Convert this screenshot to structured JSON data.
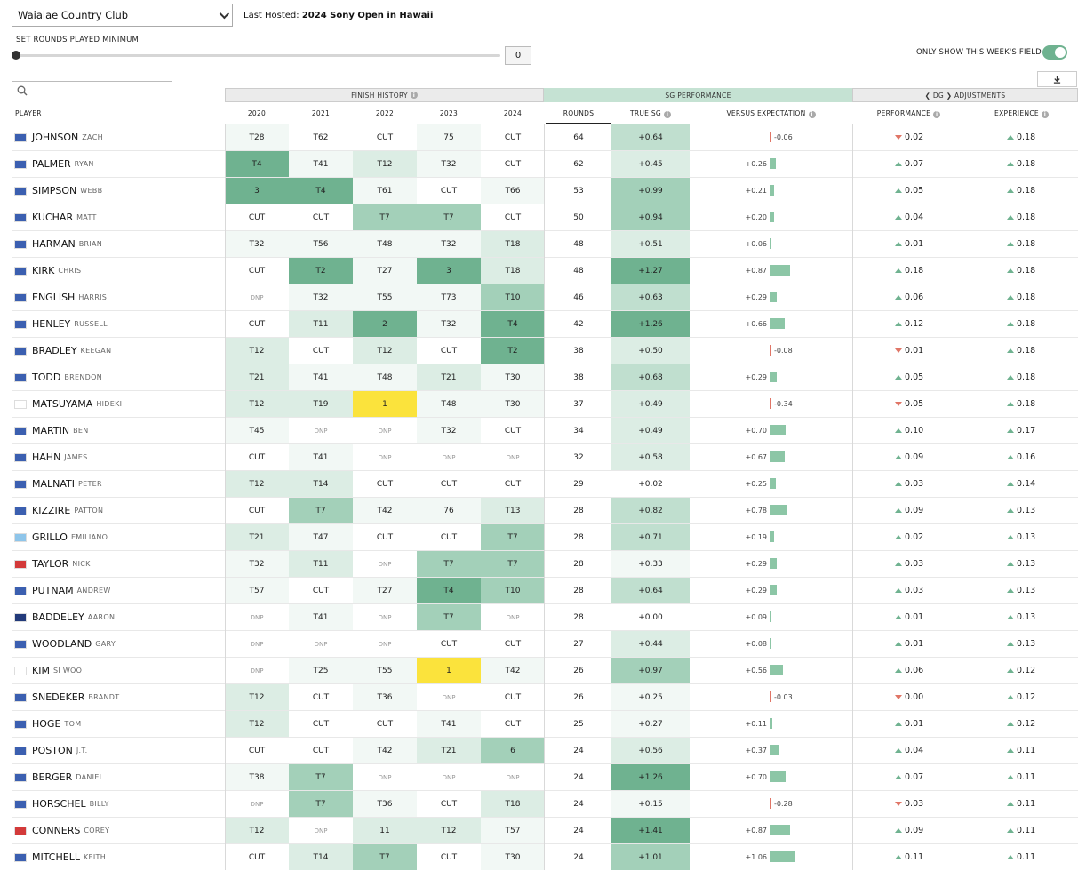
{
  "course": {
    "selected": "Waialae Country Club",
    "last_hosted_label": "Last Hosted:",
    "last_hosted_event": "2024 Sony Open in Hawaii"
  },
  "filters": {
    "rounds_label": "SET ROUNDS PLAYED MINIMUM",
    "rounds_min": "0",
    "rounds_min_fraction": 0,
    "field_label": "ONLY SHOW THIS WEEK'S FIELD",
    "field_toggle_on": true
  },
  "groups": {
    "finish": "FINISH HISTORY",
    "sg": "SG PERFORMANCE",
    "adj": "DG",
    "adj_suffix": "ADJUSTMENTS"
  },
  "columns": {
    "player": "PLAYER",
    "y2020": "2020",
    "y2021": "2021",
    "y2022": "2022",
    "y2023": "2023",
    "y2024": "2024",
    "rounds": "ROUNDS",
    "true_sg": "TRUE SG",
    "vs_exp": "VERSUS EXPECTATION",
    "performance": "PERFORMANCE",
    "experience": "EXPERIENCE"
  },
  "colors": {
    "shade1": "#f2f8f5",
    "shade2": "#dcede4",
    "shade3": "#c0dfcf",
    "shade4": "#a3d0b9",
    "shade5": "#6fb290",
    "winner": "#fbe33c",
    "bar": "#8cc6a6",
    "neg": "#e07566",
    "flag_us": "#3b5fb0",
    "flag_ca": "#d33a3a",
    "flag_jp": "#ffffff",
    "flag_ar": "#8ec5ea",
    "flag_au": "#223a7a",
    "flag_kr": "#ffffff"
  },
  "players": [
    {
      "last": "JOHNSON",
      "first": "ZACH",
      "flag": "us",
      "finishes": [
        "T28",
        "T62",
        "CUT",
        "75",
        "CUT"
      ],
      "shades": [
        1,
        0,
        0,
        1,
        0
      ],
      "rounds": "64",
      "sg": "+0.64",
      "sg_shade": 3,
      "vs": "-0.06",
      "vs_val": -0.06,
      "perf": "0.02",
      "perf_dir": "down",
      "exp": "0.18",
      "exp_dir": "up"
    },
    {
      "last": "PALMER",
      "first": "RYAN",
      "flag": "us",
      "finishes": [
        "T4",
        "T41",
        "T12",
        "T32",
        "CUT"
      ],
      "shades": [
        5,
        1,
        2,
        1,
        0
      ],
      "rounds": "62",
      "sg": "+0.45",
      "sg_shade": 2,
      "vs": "+0.26",
      "vs_val": 0.26,
      "perf": "0.07",
      "perf_dir": "up",
      "exp": "0.18",
      "exp_dir": "up"
    },
    {
      "last": "SIMPSON",
      "first": "WEBB",
      "flag": "us",
      "finishes": [
        "3",
        "T4",
        "T61",
        "CUT",
        "T66"
      ],
      "shades": [
        5,
        5,
        1,
        0,
        1
      ],
      "rounds": "53",
      "sg": "+0.99",
      "sg_shade": 4,
      "vs": "+0.21",
      "vs_val": 0.21,
      "perf": "0.05",
      "perf_dir": "up",
      "exp": "0.18",
      "exp_dir": "up"
    },
    {
      "last": "KUCHAR",
      "first": "MATT",
      "flag": "us",
      "finishes": [
        "CUT",
        "CUT",
        "T7",
        "T7",
        "CUT"
      ],
      "shades": [
        0,
        0,
        4,
        4,
        0
      ],
      "rounds": "50",
      "sg": "+0.94",
      "sg_shade": 4,
      "vs": "+0.20",
      "vs_val": 0.2,
      "perf": "0.04",
      "perf_dir": "up",
      "exp": "0.18",
      "exp_dir": "up"
    },
    {
      "last": "HARMAN",
      "first": "BRIAN",
      "flag": "us",
      "finishes": [
        "T32",
        "T56",
        "T48",
        "T32",
        "T18"
      ],
      "shades": [
        1,
        1,
        1,
        1,
        2
      ],
      "rounds": "48",
      "sg": "+0.51",
      "sg_shade": 2,
      "vs": "+0.06",
      "vs_val": 0.06,
      "perf": "0.01",
      "perf_dir": "up",
      "exp": "0.18",
      "exp_dir": "up"
    },
    {
      "last": "KIRK",
      "first": "CHRIS",
      "flag": "us",
      "finishes": [
        "CUT",
        "T2",
        "T27",
        "3",
        "T18"
      ],
      "shades": [
        0,
        5,
        1,
        5,
        2
      ],
      "rounds": "48",
      "sg": "+1.27",
      "sg_shade": 5,
      "vs": "+0.87",
      "vs_val": 0.87,
      "perf": "0.18",
      "perf_dir": "up",
      "exp": "0.18",
      "exp_dir": "up"
    },
    {
      "last": "ENGLISH",
      "first": "HARRIS",
      "flag": "us",
      "finishes": [
        "DNP",
        "T32",
        "T55",
        "T73",
        "T10"
      ],
      "shades": [
        0,
        1,
        1,
        1,
        4
      ],
      "rounds": "46",
      "sg": "+0.63",
      "sg_shade": 3,
      "vs": "+0.29",
      "vs_val": 0.29,
      "perf": "0.06",
      "perf_dir": "up",
      "exp": "0.18",
      "exp_dir": "up"
    },
    {
      "last": "HENLEY",
      "first": "RUSSELL",
      "flag": "us",
      "finishes": [
        "CUT",
        "T11",
        "2",
        "T32",
        "T4"
      ],
      "shades": [
        0,
        2,
        5,
        1,
        5
      ],
      "rounds": "42",
      "sg": "+1.26",
      "sg_shade": 5,
      "vs": "+0.66",
      "vs_val": 0.66,
      "perf": "0.12",
      "perf_dir": "up",
      "exp": "0.18",
      "exp_dir": "up"
    },
    {
      "last": "BRADLEY",
      "first": "KEEGAN",
      "flag": "us",
      "finishes": [
        "T12",
        "CUT",
        "T12",
        "CUT",
        "T2"
      ],
      "shades": [
        2,
        0,
        2,
        0,
        5
      ],
      "rounds": "38",
      "sg": "+0.50",
      "sg_shade": 2,
      "vs": "-0.08",
      "vs_val": -0.08,
      "perf": "0.01",
      "perf_dir": "down",
      "exp": "0.18",
      "exp_dir": "up"
    },
    {
      "last": "TODD",
      "first": "BRENDON",
      "flag": "us",
      "finishes": [
        "T21",
        "T41",
        "T48",
        "T21",
        "T30"
      ],
      "shades": [
        2,
        1,
        1,
        2,
        1
      ],
      "rounds": "38",
      "sg": "+0.68",
      "sg_shade": 3,
      "vs": "+0.29",
      "vs_val": 0.29,
      "perf": "0.05",
      "perf_dir": "up",
      "exp": "0.18",
      "exp_dir": "up"
    },
    {
      "last": "MATSUYAMA",
      "first": "HIDEKI",
      "flag": "jp",
      "finishes": [
        "T12",
        "T19",
        "1",
        "T48",
        "T30"
      ],
      "shades": [
        2,
        2,
        9,
        1,
        1
      ],
      "rounds": "37",
      "sg": "+0.49",
      "sg_shade": 2,
      "vs": "-0.34",
      "vs_val": -0.34,
      "perf": "0.05",
      "perf_dir": "down",
      "exp": "0.18",
      "exp_dir": "up"
    },
    {
      "last": "MARTIN",
      "first": "BEN",
      "flag": "us",
      "finishes": [
        "T45",
        "DNP",
        "DNP",
        "T32",
        "CUT"
      ],
      "shades": [
        1,
        0,
        0,
        1,
        0
      ],
      "rounds": "34",
      "sg": "+0.49",
      "sg_shade": 2,
      "vs": "+0.70",
      "vs_val": 0.7,
      "perf": "0.10",
      "perf_dir": "up",
      "exp": "0.17",
      "exp_dir": "up"
    },
    {
      "last": "HAHN",
      "first": "JAMES",
      "flag": "us",
      "finishes": [
        "CUT",
        "T41",
        "DNP",
        "DNP",
        "DNP"
      ],
      "shades": [
        0,
        1,
        0,
        0,
        0
      ],
      "rounds": "32",
      "sg": "+0.58",
      "sg_shade": 2,
      "vs": "+0.67",
      "vs_val": 0.67,
      "perf": "0.09",
      "perf_dir": "up",
      "exp": "0.16",
      "exp_dir": "up"
    },
    {
      "last": "MALNATI",
      "first": "PETER",
      "flag": "us",
      "finishes": [
        "T12",
        "T14",
        "CUT",
        "CUT",
        "CUT"
      ],
      "shades": [
        2,
        2,
        0,
        0,
        0
      ],
      "rounds": "29",
      "sg": "+0.02",
      "sg_shade": 0,
      "vs": "+0.25",
      "vs_val": 0.25,
      "perf": "0.03",
      "perf_dir": "up",
      "exp": "0.14",
      "exp_dir": "up"
    },
    {
      "last": "KIZZIRE",
      "first": "PATTON",
      "flag": "us",
      "finishes": [
        "CUT",
        "T7",
        "T42",
        "76",
        "T13"
      ],
      "shades": [
        0,
        4,
        1,
        1,
        2
      ],
      "rounds": "28",
      "sg": "+0.82",
      "sg_shade": 3,
      "vs": "+0.78",
      "vs_val": 0.78,
      "perf": "0.09",
      "perf_dir": "up",
      "exp": "0.13",
      "exp_dir": "up"
    },
    {
      "last": "GRILLO",
      "first": "EMILIANO",
      "flag": "ar",
      "finishes": [
        "T21",
        "T47",
        "CUT",
        "CUT",
        "T7"
      ],
      "shades": [
        2,
        1,
        0,
        0,
        4
      ],
      "rounds": "28",
      "sg": "+0.71",
      "sg_shade": 3,
      "vs": "+0.19",
      "vs_val": 0.19,
      "perf": "0.02",
      "perf_dir": "up",
      "exp": "0.13",
      "exp_dir": "up"
    },
    {
      "last": "TAYLOR",
      "first": "NICK",
      "flag": "ca",
      "finishes": [
        "T32",
        "T11",
        "DNP",
        "T7",
        "T7"
      ],
      "shades": [
        1,
        2,
        0,
        4,
        4
      ],
      "rounds": "28",
      "sg": "+0.33",
      "sg_shade": 1,
      "vs": "+0.29",
      "vs_val": 0.29,
      "perf": "0.03",
      "perf_dir": "up",
      "exp": "0.13",
      "exp_dir": "up"
    },
    {
      "last": "PUTNAM",
      "first": "ANDREW",
      "flag": "us",
      "finishes": [
        "T57",
        "CUT",
        "T27",
        "T4",
        "T10"
      ],
      "shades": [
        1,
        0,
        1,
        5,
        4
      ],
      "rounds": "28",
      "sg": "+0.64",
      "sg_shade": 3,
      "vs": "+0.29",
      "vs_val": 0.29,
      "perf": "0.03",
      "perf_dir": "up",
      "exp": "0.13",
      "exp_dir": "up"
    },
    {
      "last": "BADDELEY",
      "first": "AARON",
      "flag": "au",
      "finishes": [
        "DNP",
        "T41",
        "DNP",
        "T7",
        "DNP"
      ],
      "shades": [
        0,
        1,
        0,
        4,
        0
      ],
      "rounds": "28",
      "sg": "+0.00",
      "sg_shade": 0,
      "vs": "+0.09",
      "vs_val": 0.09,
      "perf": "0.01",
      "perf_dir": "up",
      "exp": "0.13",
      "exp_dir": "up"
    },
    {
      "last": "WOODLAND",
      "first": "GARY",
      "flag": "us",
      "finishes": [
        "DNP",
        "DNP",
        "DNP",
        "CUT",
        "CUT"
      ],
      "shades": [
        0,
        0,
        0,
        0,
        0
      ],
      "rounds": "27",
      "sg": "+0.44",
      "sg_shade": 2,
      "vs": "+0.08",
      "vs_val": 0.08,
      "perf": "0.01",
      "perf_dir": "up",
      "exp": "0.13",
      "exp_dir": "up"
    },
    {
      "last": "KIM",
      "first": "SI WOO",
      "flag": "kr",
      "finishes": [
        "DNP",
        "T25",
        "T55",
        "1",
        "T42"
      ],
      "shades": [
        0,
        1,
        1,
        9,
        1
      ],
      "rounds": "26",
      "sg": "+0.97",
      "sg_shade": 4,
      "vs": "+0.56",
      "vs_val": 0.56,
      "perf": "0.06",
      "perf_dir": "up",
      "exp": "0.12",
      "exp_dir": "up"
    },
    {
      "last": "SNEDEKER",
      "first": "BRANDT",
      "flag": "us",
      "finishes": [
        "T12",
        "CUT",
        "T36",
        "DNP",
        "CUT"
      ],
      "shades": [
        2,
        0,
        1,
        0,
        0
      ],
      "rounds": "26",
      "sg": "+0.25",
      "sg_shade": 1,
      "vs": "-0.03",
      "vs_val": -0.03,
      "perf": "0.00",
      "perf_dir": "down",
      "exp": "0.12",
      "exp_dir": "up"
    },
    {
      "last": "HOGE",
      "first": "TOM",
      "flag": "us",
      "finishes": [
        "T12",
        "CUT",
        "CUT",
        "T41",
        "CUT"
      ],
      "shades": [
        2,
        0,
        0,
        1,
        0
      ],
      "rounds": "25",
      "sg": "+0.27",
      "sg_shade": 1,
      "vs": "+0.11",
      "vs_val": 0.11,
      "perf": "0.01",
      "perf_dir": "up",
      "exp": "0.12",
      "exp_dir": "up"
    },
    {
      "last": "POSTON",
      "first": "J.T.",
      "flag": "us",
      "finishes": [
        "CUT",
        "CUT",
        "T42",
        "T21",
        "6"
      ],
      "shades": [
        0,
        0,
        1,
        2,
        4
      ],
      "rounds": "24",
      "sg": "+0.56",
      "sg_shade": 2,
      "vs": "+0.37",
      "vs_val": 0.37,
      "perf": "0.04",
      "perf_dir": "up",
      "exp": "0.11",
      "exp_dir": "up"
    },
    {
      "last": "BERGER",
      "first": "DANIEL",
      "flag": "us",
      "finishes": [
        "T38",
        "T7",
        "DNP",
        "DNP",
        "DNP"
      ],
      "shades": [
        1,
        4,
        0,
        0,
        0
      ],
      "rounds": "24",
      "sg": "+1.26",
      "sg_shade": 5,
      "vs": "+0.70",
      "vs_val": 0.7,
      "perf": "0.07",
      "perf_dir": "up",
      "exp": "0.11",
      "exp_dir": "up"
    },
    {
      "last": "HORSCHEL",
      "first": "BILLY",
      "flag": "us",
      "finishes": [
        "DNP",
        "T7",
        "T36",
        "CUT",
        "T18"
      ],
      "shades": [
        0,
        4,
        1,
        0,
        2
      ],
      "rounds": "24",
      "sg": "+0.15",
      "sg_shade": 1,
      "vs": "-0.28",
      "vs_val": -0.28,
      "perf": "0.03",
      "perf_dir": "down",
      "exp": "0.11",
      "exp_dir": "up"
    },
    {
      "last": "CONNERS",
      "first": "COREY",
      "flag": "ca",
      "finishes": [
        "T12",
        "DNP",
        "11",
        "T12",
        "T57"
      ],
      "shades": [
        2,
        0,
        2,
        2,
        1
      ],
      "rounds": "24",
      "sg": "+1.41",
      "sg_shade": 5,
      "vs": "+0.87",
      "vs_val": 0.87,
      "perf": "0.09",
      "perf_dir": "up",
      "exp": "0.11",
      "exp_dir": "up"
    },
    {
      "last": "MITCHELL",
      "first": "KEITH",
      "flag": "us",
      "finishes": [
        "CUT",
        "T14",
        "T7",
        "CUT",
        "T30"
      ],
      "shades": [
        0,
        2,
        4,
        0,
        1
      ],
      "rounds": "24",
      "sg": "+1.01",
      "sg_shade": 4,
      "vs": "+1.06",
      "vs_val": 1.06,
      "perf": "0.11",
      "perf_dir": "up",
      "exp": "0.11",
      "exp_dir": "up"
    }
  ]
}
